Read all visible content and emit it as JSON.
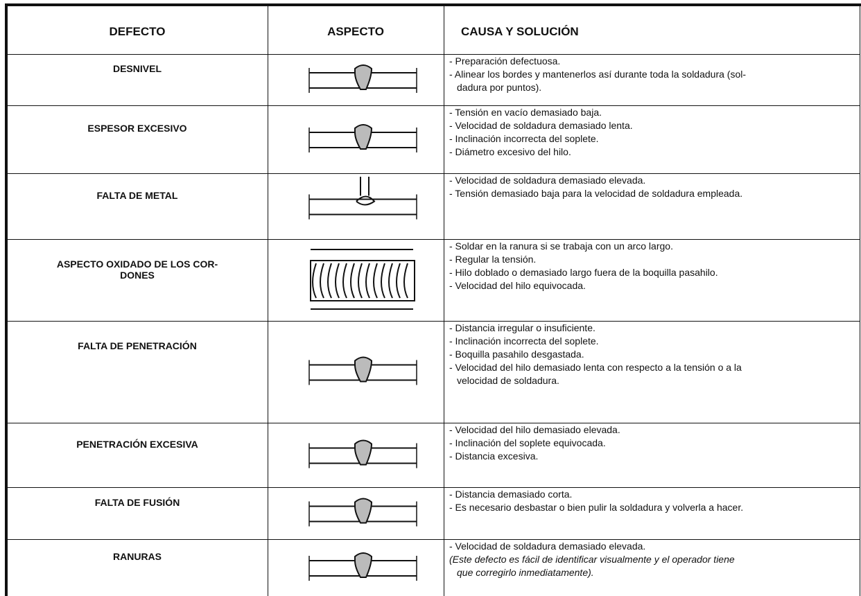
{
  "table": {
    "headers": [
      "DEFECTO",
      "ASPECTO",
      "CAUSA Y SOLUCIÓN"
    ],
    "rows": [
      {
        "defect": [
          "DESNIVEL"
        ],
        "causes": [
          "- Preparación defectuosa.",
          "- Alinear los bordes y mantenerlos así durante toda la soldadura (sol-",
          "dadura por puntos)."
        ]
      },
      {
        "defect": [
          "ESPESOR EXCESIVO"
        ],
        "causes": [
          "- Tensión en vacío demasiado baja.",
          "- Velocidad de soldadura demasiado lenta.",
          "- Inclinación incorrecta del soplete.",
          "- Diámetro excesivo del hilo."
        ]
      },
      {
        "defect": [
          "FALTA DE METAL"
        ],
        "causes": [
          "- Velocidad de soldadura demasiado elevada.",
          "- Tensión demasiado baja para la velocidad de soldadura empleada."
        ]
      },
      {
        "defect": [
          "ASPECTO OXIDADO DE LOS COR-",
          "DONES"
        ],
        "causes": [
          "- Soldar en la ranura si se trabaja con un arco largo.",
          "- Regular la tensión.",
          "- Hilo doblado o demasiado largo fuera de la boquilla pasahilo.",
          "- Velocidad del hilo equivocada."
        ]
      },
      {
        "defect": [
          "FALTA DE PENETRACIÓN"
        ],
        "causes": [
          "- Distancia irregular o insuficiente.",
          "- Inclinación incorrecta del soplete.",
          "- Boquilla pasahilo desgastada.",
          "- Velocidad del hilo demasiado lenta con respecto a la tensión o a la",
          "velocidad de soldadura."
        ]
      },
      {
        "defect": [
          "PENETRACIÓN EXCESIVA"
        ],
        "causes": [
          "- Velocidad del hilo demasiado elevada.",
          "- Inclinación del soplete equivocada.",
          "- Distancia excesiva."
        ]
      },
      {
        "defect": [
          "FALTA DE FUSIÓN"
        ],
        "causes": [
          "- Distancia demasiado corta.",
          "- Es necesario desbastar o bien pulir la soldadura y volverla a hacer."
        ]
      },
      {
        "defect": [
          "RANURAS"
        ],
        "causes": [
          "- Velocidad de soldadura demasiado elevada."
        ],
        "note": [
          "(Este defecto es fácil de identificar visualmente y el operador tiene",
          "que corregirlo inmediatamente)."
        ]
      }
    ]
  }
}
